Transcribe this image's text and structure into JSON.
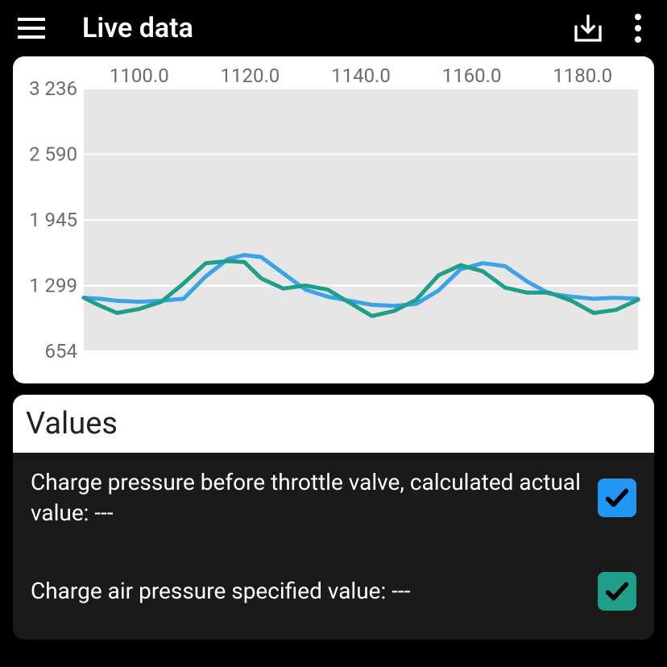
{
  "header": {
    "title": "Live data"
  },
  "chart": {
    "type": "line",
    "background_color": "#ffffff",
    "plot_bg_color": "#e6e6e6",
    "grid_color": "#ffffff",
    "axis_label_color": "#6b6b6b",
    "axis_label_fontsize": 24,
    "line_width": 5,
    "xlim": [
      1090.0,
      1190.0
    ],
    "ylim": [
      654,
      3236
    ],
    "x_ticks": [
      1100.0,
      1120.0,
      1140.0,
      1160.0,
      1180.0
    ],
    "x_tick_labels": [
      "1100.0",
      "1120.0",
      "1140.0",
      "1160.0",
      "1180.0"
    ],
    "y_ticks": [
      654,
      1299,
      1945,
      2590,
      3236
    ],
    "y_tick_labels": [
      "654",
      "1 299",
      "1 945",
      "2 590",
      "3 236"
    ],
    "series": [
      {
        "name": "charge-pressure-actual",
        "color": "#3aa4e6",
        "x": [
          1090,
          1093,
          1096,
          1100,
          1104,
          1108,
          1112,
          1116,
          1119,
          1122,
          1126,
          1130,
          1134,
          1138,
          1142,
          1146,
          1150,
          1154,
          1158,
          1162,
          1166,
          1170,
          1174,
          1178,
          1182,
          1186,
          1190
        ],
        "y": [
          1180,
          1170,
          1150,
          1140,
          1150,
          1170,
          1390,
          1560,
          1600,
          1580,
          1420,
          1260,
          1190,
          1150,
          1110,
          1100,
          1120,
          1250,
          1460,
          1520,
          1490,
          1340,
          1220,
          1190,
          1170,
          1180,
          1170
        ]
      },
      {
        "name": "charge-air-pressure-specified",
        "color": "#1f9e8a",
        "x": [
          1090,
          1093,
          1096,
          1100,
          1104,
          1108,
          1112,
          1116,
          1119,
          1122,
          1126,
          1130,
          1134,
          1138,
          1142,
          1146,
          1150,
          1154,
          1158,
          1162,
          1166,
          1170,
          1174,
          1178,
          1182,
          1186,
          1190
        ],
        "y": [
          1180,
          1100,
          1030,
          1070,
          1140,
          1320,
          1520,
          1540,
          1530,
          1370,
          1270,
          1300,
          1260,
          1130,
          1000,
          1050,
          1160,
          1400,
          1500,
          1440,
          1280,
          1230,
          1230,
          1150,
          1030,
          1060,
          1160
        ]
      }
    ]
  },
  "values": {
    "header": "Values",
    "items": [
      {
        "label": "Charge pressure before throttle valve, calculated actual value: ---",
        "checked": true,
        "checkbox_color": "#2196f3"
      },
      {
        "label": "Charge air pressure specified value: ---",
        "checked": true,
        "checkbox_color": "#1f9e8a"
      }
    ]
  },
  "colors": {
    "page_bg": "#000000",
    "card_bg": "#ffffff",
    "values_card_bg": "#1a1a1a",
    "text_primary": "#ffffff",
    "text_dark": "#222222",
    "check_stroke": "#000000"
  }
}
